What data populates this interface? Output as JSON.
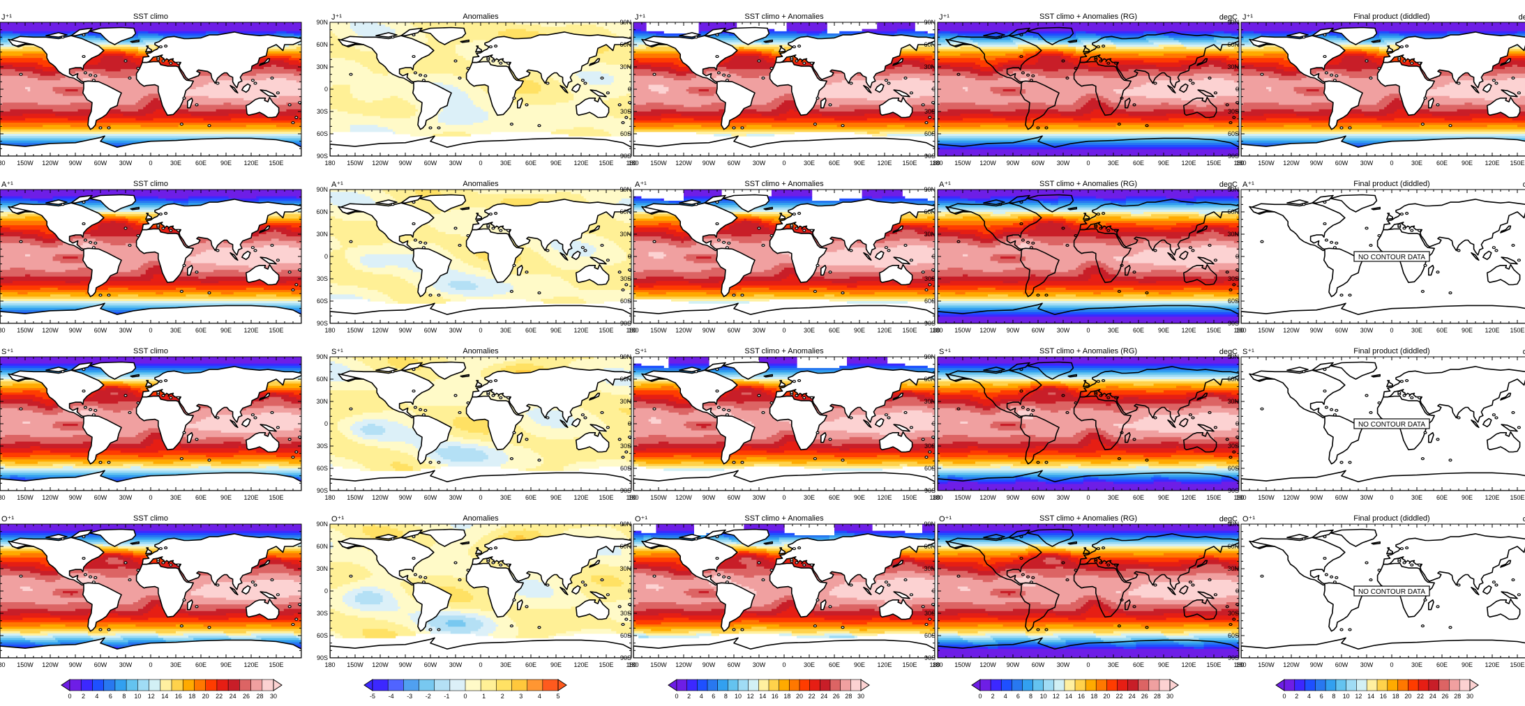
{
  "figure": {
    "row_labels": [
      "J⁺¹",
      "A⁺¹",
      "S⁺¹",
      "O⁺¹"
    ],
    "column_titles": [
      "SST climo",
      "Anomalies",
      "SST climo + Anomalies",
      "SST climo + Anomalies (RG)",
      "Final product (diddled)"
    ],
    "column_units": [
      "",
      "",
      "",
      "degC",
      "deg_C"
    ],
    "final_units_other_rows": "degC",
    "no_data_text": "NO CONTOUR DATA",
    "lon_ticks_full": [
      "180",
      "150W",
      "120W",
      "90W",
      "60W",
      "30W",
      "0",
      "30E",
      "60E",
      "90E",
      "120E",
      "150E",
      "180"
    ],
    "lat_ticks": [
      "90N",
      "60N",
      "30N",
      "0",
      "30S",
      "60S",
      "90S"
    ]
  },
  "chart_data": {
    "type": "heatmap",
    "variable": "sea surface temperature",
    "x_range": [
      -180,
      180
    ],
    "y_range": [
      -90,
      90
    ],
    "panels_with_data": [
      {
        "row": "J⁺¹",
        "columns": [
          "SST climo",
          "Anomalies",
          "SST climo + Anomalies",
          "SST climo + Anomalies (RG)",
          "Final product (diddled)"
        ]
      },
      {
        "row": "A⁺¹",
        "columns": [
          "SST climo",
          "Anomalies",
          "SST climo + Anomalies",
          "SST climo + Anomalies (RG)"
        ]
      },
      {
        "row": "S⁺¹",
        "columns": [
          "SST climo",
          "Anomalies",
          "SST climo + Anomalies",
          "SST climo + Anomalies (RG)"
        ]
      },
      {
        "row": "O⁺¹",
        "columns": [
          "SST climo",
          "Anomalies",
          "SST climo + Anomalies",
          "SST climo + Anomalies (RG)"
        ]
      }
    ],
    "colorbars": [
      {
        "column": "SST climo",
        "range": [
          0,
          30
        ],
        "labels": [
          "0",
          "2",
          "4",
          "6",
          "8",
          "10",
          "12",
          "14",
          "16",
          "18",
          "20",
          "22",
          "24",
          "26",
          "28",
          "30"
        ]
      },
      {
        "column": "Anomalies",
        "range": [
          -5,
          5
        ],
        "labels": [
          "-5",
          "-4",
          "-3",
          "-2",
          "-1",
          "0",
          "1",
          "2",
          "3",
          "4",
          "5"
        ]
      },
      {
        "column": "SST climo + Anomalies",
        "range": [
          0,
          30
        ],
        "labels": [
          "0",
          "2",
          "4",
          "6",
          "8",
          "10",
          "12",
          "14",
          "16",
          "18",
          "20",
          "22",
          "24",
          "26",
          "28",
          "30"
        ]
      },
      {
        "column": "SST climo + Anomalies (RG)",
        "range": [
          0,
          30
        ],
        "labels": [
          "0",
          "2",
          "4",
          "6",
          "8",
          "10",
          "12",
          "14",
          "16",
          "18",
          "20",
          "22",
          "24",
          "26",
          "28",
          "30"
        ]
      },
      {
        "column": "Final product (diddled)",
        "range": [
          0,
          30
        ],
        "labels": [
          "0",
          "2",
          "4",
          "6",
          "8",
          "10",
          "12",
          "14",
          "16",
          "18",
          "20",
          "22",
          "24",
          "26",
          "28",
          "30"
        ]
      }
    ]
  },
  "colors": {
    "sst_palette": [
      "#6e1ee6",
      "#3c28ff",
      "#1e50ff",
      "#2878f0",
      "#32a0f0",
      "#64c3f0",
      "#a0dcf5",
      "#d2f0f5",
      "#fff0a0",
      "#ffd24b",
      "#ffaa00",
      "#ff7800",
      "#ff3c00",
      "#e61e14",
      "#c81e28",
      "#dc6464",
      "#f0a0a0",
      "#fcd2d2"
    ],
    "anom_palette": [
      "#3c28ff",
      "#5064ff",
      "#50a0f0",
      "#78c8f0",
      "#b4e0f5",
      "#dcf0f8",
      "#fffac8",
      "#fff096",
      "#ffe164",
      "#ffc83c",
      "#ff9632",
      "#ff5a1e"
    ],
    "land": "#ffffff",
    "coast": "#000000"
  }
}
